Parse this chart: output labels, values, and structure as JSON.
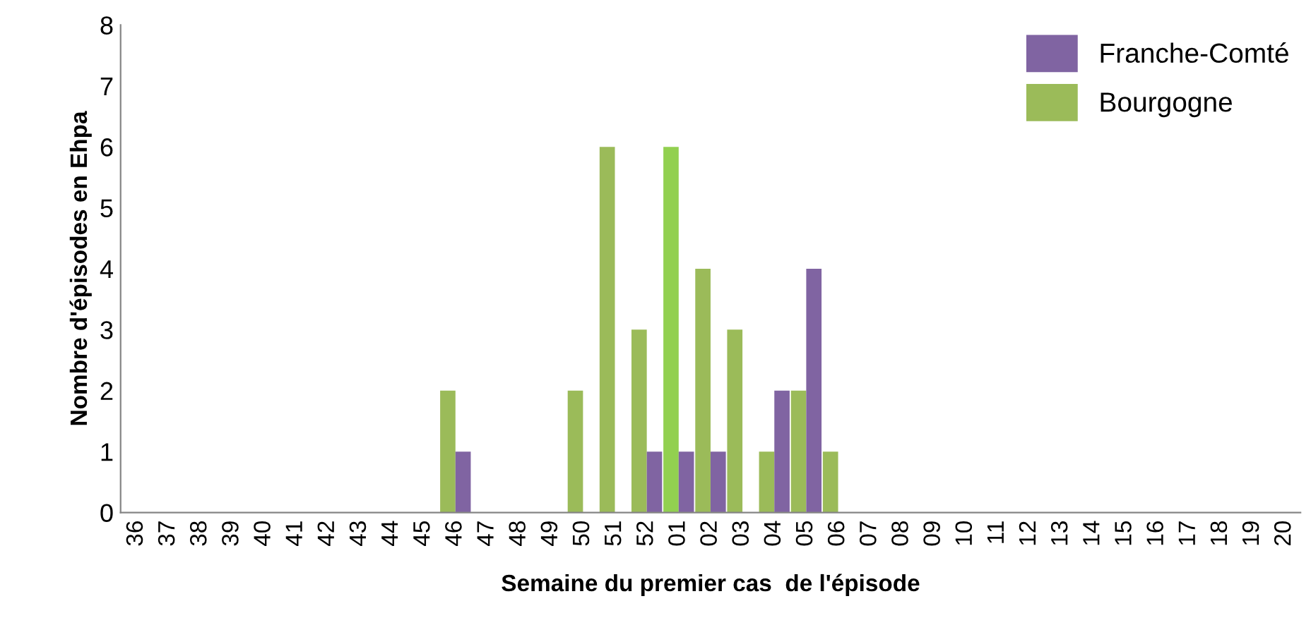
{
  "chart_data": {
    "type": "bar",
    "xlabel": "Semaine du premier cas  de l'épisode",
    "ylabel": "Nombre d'épisodes en Ehpa",
    "categories": [
      "36",
      "37",
      "38",
      "39",
      "40",
      "41",
      "42",
      "43",
      "44",
      "45",
      "46",
      "47",
      "48",
      "49",
      "50",
      "51",
      "52",
      "01",
      "02",
      "03",
      "04",
      "05",
      "06",
      "07",
      "08",
      "09",
      "10",
      "11",
      "12",
      "13",
      "14",
      "15",
      "16",
      "17",
      "18",
      "19",
      "20"
    ],
    "series": [
      {
        "name": "Bourgogne",
        "color": "#9bbb59",
        "colors": [
          "#9bbb59",
          "#9bbb59",
          "#9bbb59",
          "#9bbb59",
          "#9bbb59",
          "#9bbb59",
          "#9bbb59",
          "#9bbb59",
          "#9bbb59",
          "#9bbb59",
          "#9bbb59",
          "#9bbb59",
          "#9bbb59",
          "#9bbb59",
          "#9bbb59",
          "#9bbb59",
          "#9bbb59",
          "#92d050",
          "#9bbb59",
          "#9bbb59",
          "#9bbb59",
          "#9bbb59",
          "#9bbb59",
          "#9bbb59",
          "#9bbb59",
          "#9bbb59",
          "#9bbb59",
          "#9bbb59",
          "#9bbb59",
          "#9bbb59",
          "#9bbb59",
          "#9bbb59",
          "#9bbb59",
          "#9bbb59",
          "#9bbb59",
          "#9bbb59",
          "#9bbb59"
        ],
        "values": [
          0,
          0,
          0,
          0,
          0,
          0,
          0,
          0,
          0,
          0,
          2,
          0,
          0,
          0,
          2,
          6,
          3,
          6,
          4,
          3,
          1,
          2,
          1,
          0,
          0,
          0,
          0,
          0,
          0,
          0,
          0,
          0,
          0,
          0,
          0,
          0,
          0
        ]
      },
      {
        "name": "Franche-Comté",
        "color": "#8064a2",
        "values": [
          0,
          0,
          0,
          0,
          0,
          0,
          0,
          0,
          0,
          0,
          1,
          0,
          0,
          0,
          0,
          0,
          1,
          1,
          1,
          0,
          2,
          4,
          0,
          0,
          0,
          0,
          0,
          0,
          0,
          0,
          0,
          0,
          0,
          0,
          0,
          0,
          0
        ]
      }
    ],
    "ylim": [
      0,
      8
    ],
    "yticks": [
      0,
      1,
      2,
      3,
      4,
      5,
      6,
      7,
      8
    ],
    "grid": false,
    "legend": "top right"
  }
}
